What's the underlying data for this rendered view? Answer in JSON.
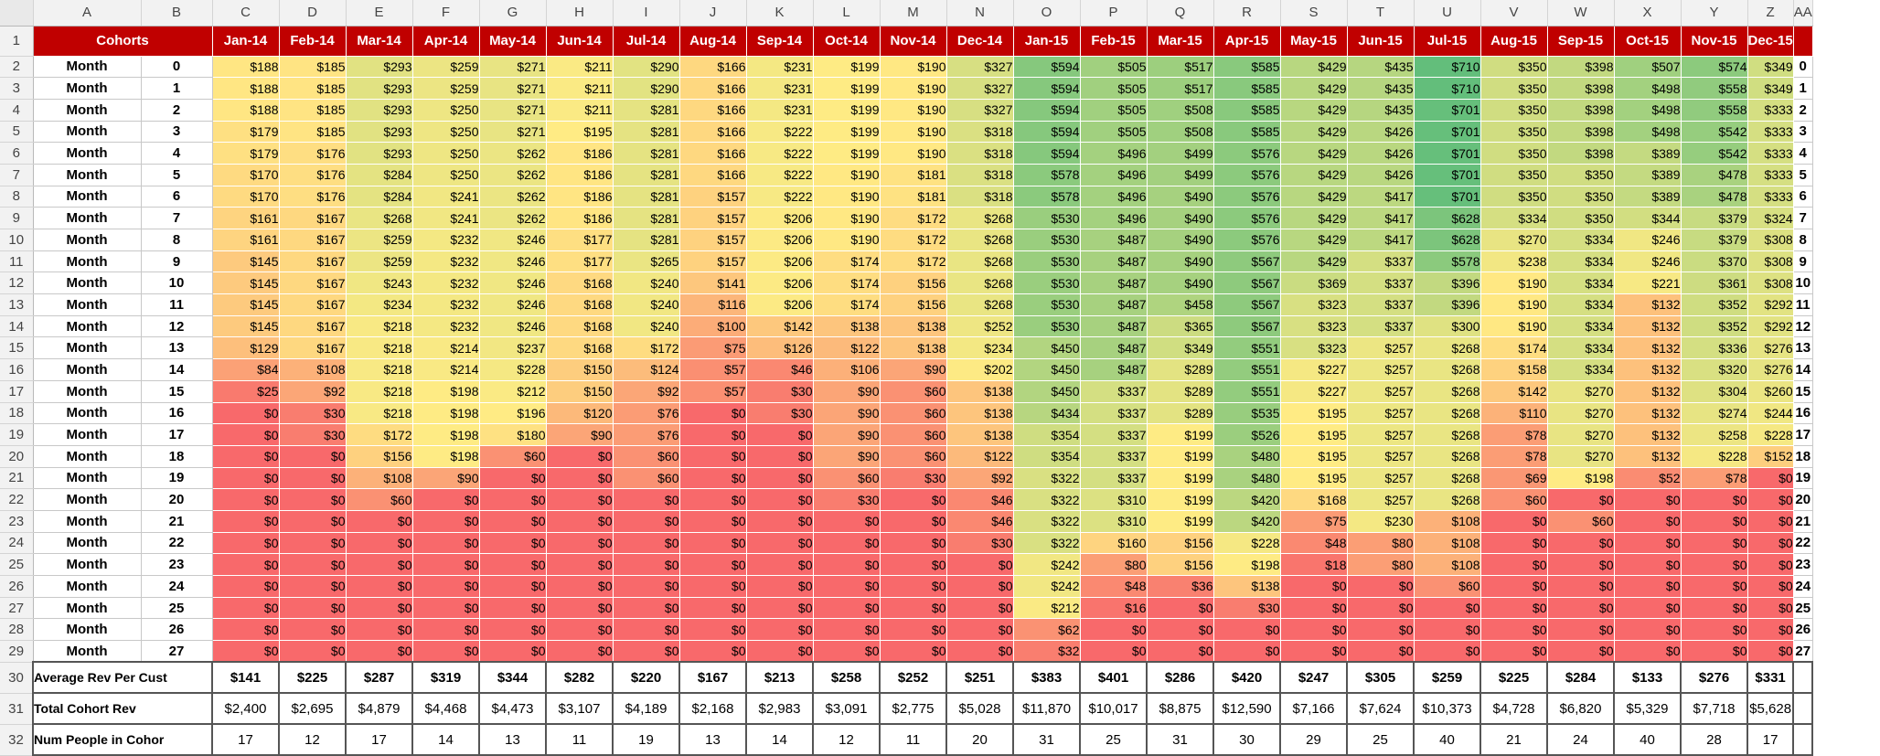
{
  "column_letters": [
    "A",
    "B",
    "C",
    "D",
    "E",
    "F",
    "G",
    "H",
    "I",
    "J",
    "K",
    "L",
    "M",
    "N",
    "O",
    "P",
    "Q",
    "R",
    "S",
    "T",
    "U",
    "V",
    "W",
    "X",
    "Y",
    "Z",
    "AA"
  ],
  "header": {
    "title": "Cohorts"
  },
  "cohorts": [
    "Jan-14",
    "Feb-14",
    "Mar-14",
    "Apr-14",
    "May-14",
    "Jun-14",
    "Jul-14",
    "Aug-14",
    "Sep-14",
    "Oct-14",
    "Nov-14",
    "Dec-14",
    "Jan-15",
    "Feb-15",
    "Mar-15",
    "Apr-15",
    "May-15",
    "Jun-15",
    "Jul-15",
    "Aug-15",
    "Sep-15",
    "Oct-15",
    "Nov-15",
    "Dec-15"
  ],
  "row_label": "Month",
  "months": [
    0,
    1,
    2,
    3,
    4,
    5,
    6,
    7,
    8,
    9,
    10,
    11,
    12,
    13,
    14,
    15,
    16,
    17,
    18,
    19,
    20,
    21,
    22,
    23,
    24,
    25,
    26,
    27
  ],
  "values": [
    [
      188,
      185,
      293,
      259,
      271,
      211,
      290,
      166,
      231,
      199,
      190,
      327,
      594,
      505,
      517,
      585,
      429,
      435,
      710,
      350,
      398,
      507,
      574,
      349
    ],
    [
      188,
      185,
      293,
      259,
      271,
      211,
      290,
      166,
      231,
      199,
      190,
      327,
      594,
      505,
      517,
      585,
      429,
      435,
      710,
      350,
      398,
      498,
      558,
      349
    ],
    [
      188,
      185,
      293,
      250,
      271,
      211,
      281,
      166,
      231,
      199,
      190,
      327,
      594,
      505,
      508,
      585,
      429,
      435,
      701,
      350,
      398,
      498,
      558,
      333
    ],
    [
      179,
      185,
      293,
      250,
      271,
      195,
      281,
      166,
      222,
      199,
      190,
      318,
      594,
      505,
      508,
      585,
      429,
      426,
      701,
      350,
      398,
      498,
      542,
      333
    ],
    [
      179,
      176,
      293,
      250,
      262,
      186,
      281,
      166,
      222,
      199,
      190,
      318,
      594,
      496,
      499,
      576,
      429,
      426,
      701,
      350,
      398,
      389,
      542,
      333
    ],
    [
      170,
      176,
      284,
      250,
      262,
      186,
      281,
      166,
      222,
      190,
      181,
      318,
      578,
      496,
      499,
      576,
      429,
      426,
      701,
      350,
      350,
      389,
      478,
      333
    ],
    [
      170,
      176,
      284,
      241,
      262,
      186,
      281,
      157,
      222,
      190,
      181,
      318,
      578,
      496,
      490,
      576,
      429,
      417,
      701,
      350,
      350,
      389,
      478,
      333
    ],
    [
      161,
      167,
      268,
      241,
      262,
      186,
      281,
      157,
      206,
      190,
      172,
      268,
      530,
      496,
      490,
      576,
      429,
      417,
      628,
      334,
      350,
      344,
      379,
      324
    ],
    [
      161,
      167,
      259,
      232,
      246,
      177,
      281,
      157,
      206,
      190,
      172,
      268,
      530,
      487,
      490,
      576,
      429,
      417,
      628,
      270,
      334,
      246,
      379,
      308
    ],
    [
      145,
      167,
      259,
      232,
      246,
      177,
      265,
      157,
      206,
      174,
      172,
      268,
      530,
      487,
      490,
      567,
      429,
      337,
      578,
      238,
      334,
      246,
      370,
      308
    ],
    [
      145,
      167,
      243,
      232,
      246,
      168,
      240,
      141,
      206,
      174,
      156,
      268,
      530,
      487,
      490,
      567,
      369,
      337,
      396,
      190,
      334,
      221,
      361,
      308
    ],
    [
      145,
      167,
      234,
      232,
      246,
      168,
      240,
      116,
      206,
      174,
      156,
      268,
      530,
      487,
      458,
      567,
      323,
      337,
      396,
      190,
      334,
      132,
      352,
      292
    ],
    [
      145,
      167,
      218,
      232,
      246,
      168,
      240,
      100,
      142,
      138,
      138,
      252,
      530,
      487,
      365,
      567,
      323,
      337,
      300,
      190,
      334,
      132,
      352,
      292
    ],
    [
      129,
      167,
      218,
      214,
      237,
      168,
      172,
      75,
      126,
      122,
      138,
      234,
      450,
      487,
      349,
      551,
      323,
      257,
      268,
      174,
      334,
      132,
      336,
      276
    ],
    [
      84,
      108,
      218,
      214,
      228,
      150,
      124,
      57,
      46,
      106,
      90,
      202,
      450,
      487,
      289,
      551,
      227,
      257,
      268,
      158,
      334,
      132,
      320,
      276
    ],
    [
      25,
      92,
      218,
      198,
      212,
      150,
      92,
      57,
      30,
      90,
      60,
      138,
      450,
      337,
      289,
      551,
      227,
      257,
      268,
      142,
      270,
      132,
      304,
      260
    ],
    [
      0,
      30,
      218,
      198,
      196,
      120,
      76,
      0,
      30,
      90,
      60,
      138,
      434,
      337,
      289,
      535,
      195,
      257,
      268,
      110,
      270,
      132,
      274,
      244
    ],
    [
      0,
      30,
      172,
      198,
      180,
      90,
      76,
      0,
      0,
      90,
      60,
      138,
      354,
      337,
      199,
      526,
      195,
      257,
      268,
      78,
      270,
      132,
      258,
      228
    ],
    [
      0,
      0,
      156,
      198,
      60,
      0,
      60,
      0,
      0,
      90,
      60,
      122,
      354,
      337,
      199,
      480,
      195,
      257,
      268,
      78,
      270,
      132,
      228,
      152
    ],
    [
      0,
      0,
      108,
      90,
      0,
      0,
      60,
      0,
      0,
      60,
      30,
      92,
      322,
      337,
      199,
      480,
      195,
      257,
      268,
      69,
      198,
      52,
      78,
      0
    ],
    [
      0,
      0,
      60,
      0,
      0,
      0,
      0,
      0,
      0,
      30,
      0,
      46,
      322,
      310,
      199,
      420,
      168,
      257,
      268,
      60,
      0,
      0,
      0,
      0
    ],
    [
      0,
      0,
      0,
      0,
      0,
      0,
      0,
      0,
      0,
      0,
      0,
      46,
      322,
      310,
      199,
      420,
      75,
      230,
      108,
      0,
      60,
      0,
      0,
      0
    ],
    [
      0,
      0,
      0,
      0,
      0,
      0,
      0,
      0,
      0,
      0,
      0,
      30,
      322,
      160,
      156,
      228,
      48,
      80,
      108,
      0,
      0,
      0,
      0,
      0
    ],
    [
      0,
      0,
      0,
      0,
      0,
      0,
      0,
      0,
      0,
      0,
      0,
      0,
      242,
      80,
      156,
      198,
      18,
      80,
      108,
      0,
      0,
      0,
      0,
      0
    ],
    [
      0,
      0,
      0,
      0,
      0,
      0,
      0,
      0,
      0,
      0,
      0,
      0,
      242,
      48,
      36,
      138,
      0,
      0,
      60,
      0,
      0,
      0,
      0,
      0
    ],
    [
      0,
      0,
      0,
      0,
      0,
      0,
      0,
      0,
      0,
      0,
      0,
      0,
      212,
      16,
      0,
      30,
      0,
      0,
      0,
      0,
      0,
      0,
      0,
      0
    ],
    [
      0,
      0,
      0,
      0,
      0,
      0,
      0,
      0,
      0,
      0,
      0,
      0,
      62,
      0,
      0,
      0,
      0,
      0,
      0,
      0,
      0,
      0,
      0,
      0
    ],
    [
      0,
      0,
      0,
      0,
      0,
      0,
      0,
      0,
      0,
      0,
      0,
      0,
      32,
      0,
      0,
      0,
      0,
      0,
      0,
      0,
      0,
      0,
      0,
      0
    ]
  ],
  "summary": [
    {
      "label": "Average Rev Per Cust",
      "values": [
        "$141",
        "$225",
        "$287",
        "$319",
        "$344",
        "$282",
        "$220",
        "$167",
        "$213",
        "$258",
        "$252",
        "$251",
        "$383",
        "$401",
        "$286",
        "$420",
        "$247",
        "$305",
        "$259",
        "$225",
        "$284",
        "$133",
        "$276",
        "$331"
      ]
    },
    {
      "label": "Total Cohort Rev",
      "values": [
        "$2,400",
        "$2,695",
        "$4,879",
        "$4,468",
        "$4,473",
        "$3,107",
        "$4,189",
        "$2,168",
        "$2,983",
        "$3,091",
        "$2,775",
        "$5,028",
        "$11,870",
        "$10,017",
        "$8,875",
        "$12,590",
        "$7,166",
        "$7,624",
        "$10,373",
        "$4,728",
        "$6,820",
        "$5,329",
        "$7,718",
        "$5,628"
      ]
    },
    {
      "label": "Num People in Cohor",
      "values": [
        "17",
        "12",
        "17",
        "14",
        "13",
        "11",
        "19",
        "13",
        "14",
        "12",
        "11",
        "20",
        "31",
        "25",
        "31",
        "30",
        "29",
        "25",
        "40",
        "21",
        "24",
        "40",
        "28",
        "17"
      ]
    }
  ],
  "colors": {
    "low": "#f8696b",
    "mid": "#ffeb84",
    "high": "#63be7b",
    "header_red": "#c00000"
  }
}
